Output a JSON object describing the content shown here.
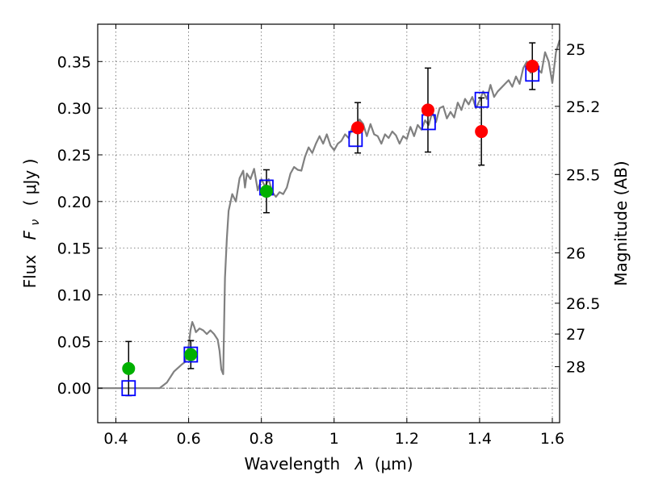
{
  "chart_data": {
    "type": "scatter",
    "title": "",
    "xlabel": "Wavelength",
    "xlabel_symbol": "λ",
    "xlabel_unit": "(μm)",
    "ylabel": "Flux",
    "ylabel_symbol": "F",
    "ylabel_subscript": "ν",
    "ylabel_unit": "( μJy )",
    "y2label": "Magnitude (AB)",
    "xlim": [
      0.35,
      1.62
    ],
    "ylim": [
      -0.037,
      0.39
    ],
    "grid": true,
    "x_ticks": [
      0.4,
      0.6,
      0.8,
      1.0,
      1.2,
      1.4,
      1.6
    ],
    "x_tick_labels": [
      "0.4",
      "0.6",
      "0.8",
      "1",
      "1.2",
      "1.4",
      "1.6"
    ],
    "y_ticks": [
      0.0,
      0.05,
      0.1,
      0.15,
      0.2,
      0.25,
      0.3,
      0.35
    ],
    "y_tick_labels": [
      "0.00",
      "0.05",
      "0.10",
      "0.15",
      "0.20",
      "0.25",
      "0.30",
      "0.35"
    ],
    "y2_ticks": [
      {
        "label": "25",
        "flux": 0.363
      },
      {
        "label": "25.2",
        "flux": 0.302
      },
      {
        "label": "25.5",
        "flux": 0.229
      },
      {
        "label": "26",
        "flux": 0.145
      },
      {
        "label": "26.5",
        "flux": 0.091
      },
      {
        "label": "27",
        "flux": 0.058
      },
      {
        "label": "28",
        "flux": 0.023
      }
    ],
    "colors": {
      "model": "#808080",
      "green": "#00b000",
      "red": "#ff0000",
      "box": "#0000ff",
      "errorbar": "#000000",
      "zeroline": "#555555"
    },
    "series": [
      {
        "name": "model spectrum",
        "kind": "line",
        "points": [
          [
            0.35,
            0.0
          ],
          [
            0.52,
            0.0
          ],
          [
            0.54,
            0.006
          ],
          [
            0.56,
            0.018
          ],
          [
            0.58,
            0.025
          ],
          [
            0.59,
            0.028
          ],
          [
            0.6,
            0.045
          ],
          [
            0.605,
            0.062
          ],
          [
            0.61,
            0.071
          ],
          [
            0.615,
            0.066
          ],
          [
            0.62,
            0.06
          ],
          [
            0.63,
            0.064
          ],
          [
            0.64,
            0.062
          ],
          [
            0.65,
            0.058
          ],
          [
            0.66,
            0.062
          ],
          [
            0.67,
            0.058
          ],
          [
            0.68,
            0.052
          ],
          [
            0.685,
            0.04
          ],
          [
            0.69,
            0.02
          ],
          [
            0.695,
            0.015
          ],
          [
            0.7,
            0.118
          ],
          [
            0.705,
            0.16
          ],
          [
            0.71,
            0.19
          ],
          [
            0.72,
            0.208
          ],
          [
            0.73,
            0.2
          ],
          [
            0.74,
            0.225
          ],
          [
            0.75,
            0.233
          ],
          [
            0.755,
            0.215
          ],
          [
            0.76,
            0.23
          ],
          [
            0.77,
            0.224
          ],
          [
            0.78,
            0.235
          ],
          [
            0.79,
            0.212
          ],
          [
            0.8,
            0.224
          ],
          [
            0.81,
            0.216
          ],
          [
            0.82,
            0.224
          ],
          [
            0.83,
            0.21
          ],
          [
            0.84,
            0.205
          ],
          [
            0.85,
            0.21
          ],
          [
            0.86,
            0.208
          ],
          [
            0.87,
            0.215
          ],
          [
            0.88,
            0.23
          ],
          [
            0.89,
            0.237
          ],
          [
            0.9,
            0.234
          ],
          [
            0.91,
            0.233
          ],
          [
            0.92,
            0.248
          ],
          [
            0.93,
            0.258
          ],
          [
            0.94,
            0.252
          ],
          [
            0.95,
            0.262
          ],
          [
            0.96,
            0.27
          ],
          [
            0.97,
            0.262
          ],
          [
            0.98,
            0.272
          ],
          [
            0.99,
            0.26
          ],
          [
            1.0,
            0.255
          ],
          [
            1.01,
            0.262
          ],
          [
            1.02,
            0.265
          ],
          [
            1.03,
            0.272
          ],
          [
            1.04,
            0.268
          ],
          [
            1.05,
            0.28
          ],
          [
            1.06,
            0.276
          ],
          [
            1.07,
            0.288
          ],
          [
            1.08,
            0.283
          ],
          [
            1.09,
            0.27
          ],
          [
            1.1,
            0.283
          ],
          [
            1.11,
            0.272
          ],
          [
            1.12,
            0.27
          ],
          [
            1.13,
            0.262
          ],
          [
            1.14,
            0.272
          ],
          [
            1.15,
            0.268
          ],
          [
            1.16,
            0.275
          ],
          [
            1.17,
            0.271
          ],
          [
            1.18,
            0.262
          ],
          [
            1.19,
            0.27
          ],
          [
            1.2,
            0.267
          ],
          [
            1.21,
            0.28
          ],
          [
            1.22,
            0.27
          ],
          [
            1.23,
            0.282
          ],
          [
            1.24,
            0.277
          ],
          [
            1.25,
            0.287
          ],
          [
            1.26,
            0.282
          ],
          [
            1.27,
            0.296
          ],
          [
            1.28,
            0.285
          ],
          [
            1.29,
            0.3
          ],
          [
            1.3,
            0.302
          ],
          [
            1.31,
            0.289
          ],
          [
            1.32,
            0.296
          ],
          [
            1.33,
            0.29
          ],
          [
            1.34,
            0.306
          ],
          [
            1.35,
            0.298
          ],
          [
            1.36,
            0.31
          ],
          [
            1.37,
            0.304
          ],
          [
            1.38,
            0.312
          ],
          [
            1.39,
            0.3
          ],
          [
            1.4,
            0.308
          ],
          [
            1.41,
            0.318
          ],
          [
            1.42,
            0.31
          ],
          [
            1.43,
            0.325
          ],
          [
            1.44,
            0.312
          ],
          [
            1.45,
            0.318
          ],
          [
            1.46,
            0.322
          ],
          [
            1.47,
            0.326
          ],
          [
            1.48,
            0.33
          ],
          [
            1.49,
            0.323
          ],
          [
            1.5,
            0.334
          ],
          [
            1.51,
            0.326
          ],
          [
            1.52,
            0.343
          ],
          [
            1.53,
            0.35
          ],
          [
            1.54,
            0.338
          ],
          [
            1.55,
            0.347
          ],
          [
            1.56,
            0.342
          ],
          [
            1.57,
            0.338
          ],
          [
            1.58,
            0.36
          ],
          [
            1.59,
            0.35
          ],
          [
            1.6,
            0.327
          ],
          [
            1.61,
            0.36
          ],
          [
            1.62,
            0.373
          ]
        ]
      },
      {
        "name": "model band flux",
        "kind": "open-square",
        "x": [
          0.435,
          0.606,
          0.814,
          1.059,
          1.26,
          1.406,
          1.545
        ],
        "y": [
          0.0,
          0.036,
          0.215,
          0.267,
          0.285,
          0.309,
          0.337
        ]
      },
      {
        "name": "green measurements",
        "kind": "filled-circle",
        "x": [
          0.435,
          0.606,
          0.814
        ],
        "y": [
          0.021,
          0.036,
          0.211
        ],
        "yerr": [
          0.029,
          0.015,
          0.023
        ]
      },
      {
        "name": "red measurements",
        "kind": "filled-circle",
        "x": [
          1.065,
          1.258,
          1.405,
          1.545
        ],
        "y": [
          0.279,
          0.298,
          0.275,
          0.345
        ],
        "yerr": [
          0.027,
          0.045,
          0.036,
          0.025
        ]
      }
    ]
  }
}
